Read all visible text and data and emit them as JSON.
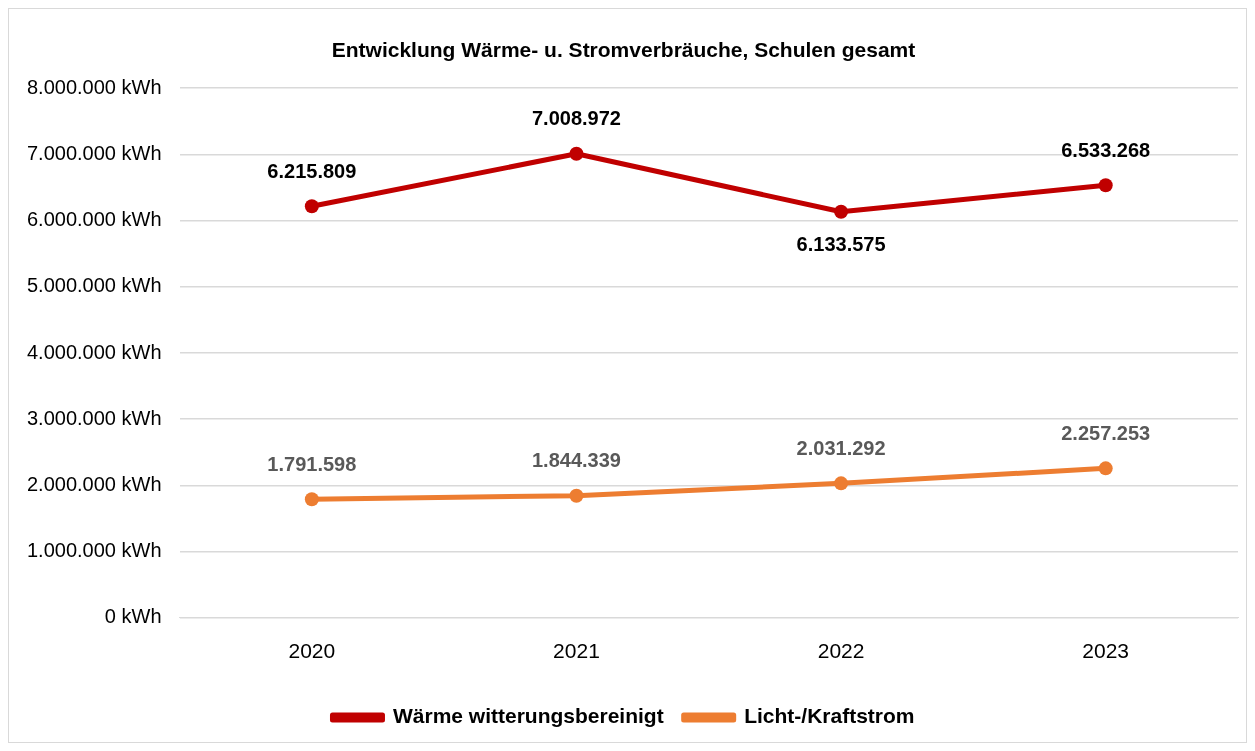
{
  "chart_data": {
    "type": "line",
    "title": "Entwicklung Wärme- u. Stromverbräuche, Schulen gesamt",
    "categories": [
      "2020",
      "2021",
      "2022",
      "2023"
    ],
    "series": [
      {
        "name": "Wärme witterungsbereinigt",
        "color": "#c00000",
        "values": [
          6215809,
          7008972,
          6133575,
          6533268
        ],
        "value_labels": [
          "6.215.809",
          "7.008.972",
          "6.133.575",
          "6.533.268"
        ]
      },
      {
        "name": "Licht-/Kraftstrom",
        "color": "#ed7d31",
        "values": [
          1791598,
          1844339,
          2031292,
          2257253
        ],
        "value_labels": [
          "1.791.598",
          "1.844.339",
          "2.031.292",
          "2.257.253"
        ]
      }
    ],
    "ylim": [
      0,
      8000000
    ],
    "yticks": [
      {
        "value": 0,
        "label": "0 kWh"
      },
      {
        "value": 1000000,
        "label": "1.000.000 kWh"
      },
      {
        "value": 2000000,
        "label": "2.000.000 kWh"
      },
      {
        "value": 3000000,
        "label": "3.000.000 kWh"
      },
      {
        "value": 4000000,
        "label": "4.000.000 kWh"
      },
      {
        "value": 5000000,
        "label": "5.000.000 kWh"
      },
      {
        "value": 6000000,
        "label": "6.000.000 kWh"
      },
      {
        "value": 7000000,
        "label": "7.000.000 kWh"
      },
      {
        "value": 8000000,
        "label": "8.000.000 kWh"
      }
    ],
    "grid": "y",
    "legend": "bottom",
    "marker": "circle",
    "line_style": "solid"
  }
}
